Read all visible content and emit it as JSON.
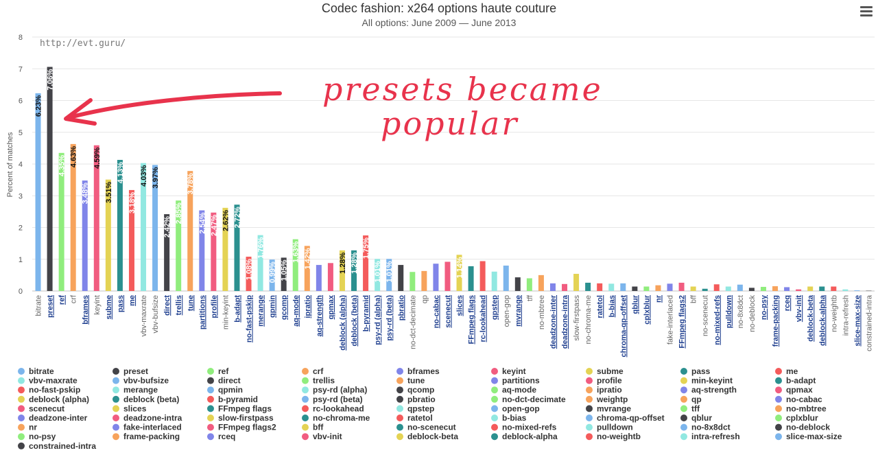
{
  "menu_icon": "hamburger-icon",
  "credit": "http://evt.guru/",
  "annotation": {
    "line1": "presets became",
    "line2": "popular",
    "color": "#e8334c"
  },
  "chart_data": {
    "type": "bar",
    "title": "Codec fashion: x264 options haute couture",
    "subtitle": "All options: June 2009 — June 2013",
    "xlabel": "",
    "ylabel": "Percent of matches",
    "ylim": [
      0,
      8
    ],
    "yticks": [
      "0",
      "1",
      "2",
      "3",
      "4",
      "5",
      "6",
      "7",
      "8"
    ],
    "grid": true,
    "legend_position": "bottom",
    "categories": [
      "bitrate",
      "preset",
      "ref",
      "crf",
      "bframes",
      "keyint",
      "subme",
      "pass",
      "me",
      "vbv-maxrate",
      "vbv-bufsize",
      "direct",
      "trellis",
      "tune",
      "partitions",
      "profile",
      "min-keyint",
      "b-adapt",
      "no-fast-pskip",
      "merange",
      "qpmin",
      "qcomp",
      "aq-mode",
      "ipratio",
      "aq-strength",
      "qpmax",
      "deblock (alpha)",
      "deblock (beta)",
      "b-pyramid",
      "psy-rd (alpha)",
      "psy-rd (beta)",
      "pbratio",
      "no-dct-decimate",
      "qp",
      "no-cabac",
      "scenecut",
      "slices",
      "FFmpeg flags",
      "rc-lookahead",
      "qpstep",
      "open-gop",
      "mvrange",
      "tff",
      "no-mbtree",
      "deadzone-inter",
      "deadzone-intra",
      "slow-firstpass",
      "no-chroma-me",
      "ratetol",
      "b-bias",
      "chroma-qp-offset",
      "qblur",
      "cplxblur",
      "nr",
      "fake-interlaced",
      "FFmpeg flags2",
      "bff",
      "no-scenecut",
      "no-mixed-refs",
      "pulldown",
      "no-8x8dct",
      "no-deblock",
      "no-psy",
      "frame-packing",
      "rceq",
      "vbv-init",
      "deblock-beta",
      "deblock-alpha",
      "no-weightb",
      "intra-refresh",
      "slice-max-size",
      "constrained-intra"
    ],
    "values": [
      6.23,
      7.06,
      4.35,
      4.63,
      3.48,
      4.59,
      3.51,
      4.13,
      3.18,
      4.03,
      3.97,
      2.42,
      2.85,
      3.78,
      2.54,
      2.47,
      2.62,
      2.72,
      1.08,
      1.76,
      0.99,
      1.05,
      1.63,
      1.42,
      0.82,
      0.88,
      1.28,
      1.28,
      1.75,
      1.01,
      1.01,
      0.82,
      0.6,
      0.63,
      0.86,
      0.92,
      1.14,
      0.78,
      0.94,
      0.61,
      0.8,
      0.43,
      0.4,
      0.5,
      0.24,
      0.22,
      0.54,
      0.26,
      0.24,
      0.23,
      0.24,
      0.14,
      0.14,
      0.18,
      0.23,
      0.26,
      0.14,
      0.07,
      0.21,
      0.14,
      0.2,
      0.1,
      0.13,
      0.15,
      0.12,
      0.05,
      0.14,
      0.14,
      0.14,
      0.05,
      0.02,
      0.01
    ],
    "value_labels": [
      "6.23%",
      "7.06%",
      "4.35%",
      "4.63%",
      "3.48%",
      "4.59%",
      "3.51%",
      "4.13%",
      "3.18%",
      "4.03%",
      "3.97%",
      "2.42%",
      "2.85%",
      "3.78%",
      "2.54%",
      "2.47%",
      "2.62%",
      "2.72%",
      "1.08%",
      "1.76%",
      "0.99%",
      "1.05%",
      "1.63%",
      "1.42%",
      "",
      "",
      "1.28%",
      "1.28%",
      "1.75%",
      "1.01%",
      "1.01%",
      "",
      "",
      "",
      "",
      "",
      "1.14%",
      "",
      "",
      "",
      "",
      "",
      "",
      "",
      "",
      "",
      "",
      "",
      "",
      "",
      "",
      "",
      "",
      "",
      "",
      "",
      "",
      "",
      "",
      "",
      "",
      "",
      "",
      "",
      "",
      "",
      "",
      "",
      "",
      "",
      "",
      ""
    ],
    "label_colors": [
      "#111111",
      "#ffffff",
      "#ffffff",
      "#111111",
      "#ffffff",
      "#111111",
      "#111111",
      "#ffffff",
      "#ffffff",
      "#111111",
      "#111111",
      "#ffffff",
      "#ffffff",
      "#ffffff",
      "#ffffff",
      "#ffffff",
      "#111111",
      "#ffffff",
      "#ffffff",
      "#ffffff",
      "#ffffff",
      "#ffffff",
      "#ffffff",
      "#ffffff",
      "",
      "",
      "#111111",
      "#ffffff",
      "#ffffff",
      "#ffffff",
      "#ffffff",
      "",
      "",
      "",
      "",
      "",
      "#ffffff",
      "",
      "",
      "",
      "",
      "",
      "",
      "",
      "",
      "",
      "",
      "",
      "",
      "",
      "",
      "",
      "",
      "",
      "",
      "",
      "",
      "",
      "",
      "",
      "",
      "",
      "",
      "",
      "",
      "",
      "",
      "",
      "",
      "",
      "",
      ""
    ],
    "colors": [
      "#7cb5ec",
      "#434348",
      "#90ed7d",
      "#f7a35c",
      "#8085e9",
      "#f15c80",
      "#e4d354",
      "#2b908f",
      "#f45b5b",
      "#91e8e1"
    ],
    "underlined": [
      "preset",
      "ref",
      "bframes",
      "subme",
      "pass",
      "me",
      "direct",
      "trellis",
      "tune",
      "partitions",
      "profile",
      "b-adapt",
      "no-fast-pskip",
      "merange",
      "qpmin",
      "qcomp",
      "aq-mode",
      "ipratio",
      "aq-strength",
      "qpmax",
      "deblock (alpha)",
      "deblock (beta)",
      "b-pyramid",
      "psy-rd (alpha)",
      "psy-rd (beta)",
      "pbratio",
      "no-cabac",
      "scenecut",
      "slices",
      "FFmpeg flags",
      "rc-lookahead",
      "qpstep",
      "mvrange",
      "deadzone-inter",
      "deadzone-intra",
      "ratetol",
      "b-bias",
      "chroma-qp-offset",
      "qblur",
      "cplxblur",
      "nr",
      "FFmpeg flags2",
      "no-mixed-refs",
      "pulldown",
      "no-psy",
      "frame-packing",
      "rceq",
      "vbv-init",
      "deblock-beta",
      "deblock-alpha",
      "slice-max-size"
    ],
    "legend": [
      "bitrate",
      "preset",
      "ref",
      "crf",
      "bframes",
      "keyint",
      "subme",
      "pass",
      "me",
      "vbv-maxrate",
      "vbv-bufsize",
      "direct",
      "trellis",
      "tune",
      "partitions",
      "profile",
      "min-keyint",
      "b-adapt",
      "no-fast-pskip",
      "merange",
      "qpmin",
      "psy-rd (alpha)",
      "qcomp",
      "aq-mode",
      "ipratio",
      "aq-strength",
      "qpmax",
      "deblock (alpha)",
      "deblock (beta)",
      "b-pyramid",
      "psy-rd (beta)",
      "pbratio",
      "no-dct-decimate",
      "weightp",
      "qp",
      "no-cabac",
      "scenecut",
      "slices",
      "FFmpeg flags",
      "rc-lookahead",
      "qpstep",
      "open-gop",
      "mvrange",
      "tff",
      "no-mbtree",
      "deadzone-inter",
      "deadzone-intra",
      "slow-firstpass",
      "no-chroma-me",
      "ratetol",
      "b-bias",
      "chroma-qp-offset",
      "qblur",
      "cplxblur",
      "nr",
      "fake-interlaced",
      "FFmpeg flags2",
      "bff",
      "no-scenecut",
      "no-mixed-refs",
      "pulldown",
      "no-8x8dct",
      "no-deblock",
      "no-psy",
      "frame-packing",
      "rceq",
      "vbv-init",
      "deblock-beta",
      "deblock-alpha",
      "no-weightb",
      "intra-refresh",
      "slice-max-size",
      "constrained-intra"
    ]
  }
}
